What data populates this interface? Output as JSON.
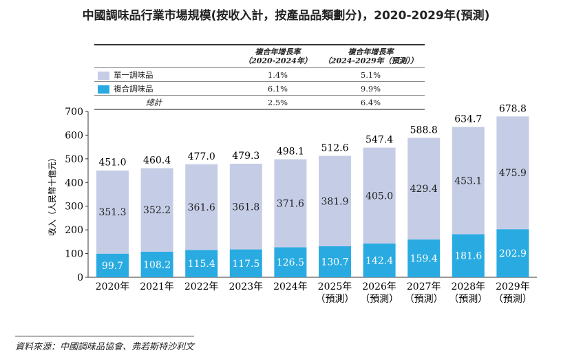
{
  "title": "中國調味品行業市場規模(按收入計，按產品品類劃分)，2020-2029年(預測)",
  "cagr_table": {
    "headers": [
      "",
      "複合年增長率\n（2020-2024年）",
      "複合年增長率\n（2024-2029年（預測））"
    ],
    "rows": [
      {
        "label": "單一調味品",
        "color": "#c5cde6",
        "values": [
          "1.4%",
          "5.1%"
        ]
      },
      {
        "label": "複合調味品",
        "color": "#29abe2",
        "values": [
          "6.1%",
          "9.9%"
        ]
      },
      {
        "label": "總計",
        "values": [
          "2.5%",
          "6.4%"
        ]
      }
    ]
  },
  "chart_data": {
    "type": "bar",
    "stacked": true,
    "categories": [
      "2020年",
      "2021年",
      "2022年",
      "2023年",
      "2024年",
      "2025年\n（預測）",
      "2026年\n（預測）",
      "2027年\n（預測）",
      "2028年\n（預測）",
      "2029年\n（預測）"
    ],
    "series": [
      {
        "name": "複合調味品",
        "color": "#29abe2",
        "values": [
          99.7,
          108.2,
          115.4,
          117.5,
          126.5,
          130.7,
          142.4,
          159.4,
          181.6,
          202.9
        ]
      },
      {
        "name": "單一調味品",
        "color": "#c5cde6",
        "values": [
          351.3,
          352.2,
          361.6,
          361.8,
          371.6,
          381.9,
          405.0,
          429.4,
          453.1,
          475.9
        ]
      }
    ],
    "totals": [
      "451.0",
      "460.4",
      "477.0",
      "479.3",
      "498.1",
      "512.6",
      "547.4",
      "588.8",
      "634.7",
      "678.8"
    ],
    "ylabel": "收入（人民幣十億元）",
    "ylim": [
      0,
      700
    ],
    "yticks": [
      0,
      100,
      200,
      300,
      400,
      500,
      600,
      700
    ],
    "grid": false
  },
  "source": "資料來源：中國調味品協會、弗若斯特沙利文"
}
